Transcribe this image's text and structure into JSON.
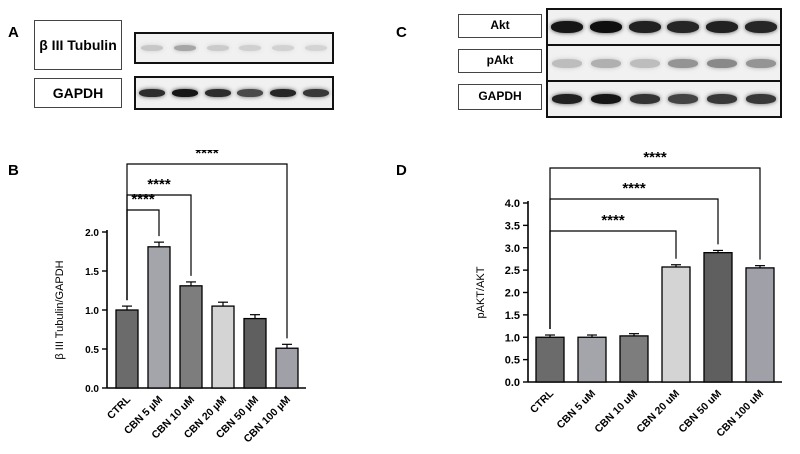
{
  "panels": {
    "a": "A",
    "b": "B",
    "c": "C",
    "d": "D"
  },
  "blots": {
    "a_top_label": "β III Tubulin",
    "a_bottom_label": "GAPDH",
    "c_labels": [
      "Akt",
      "pAkt",
      "GAPDH"
    ],
    "band_intensity": {
      "a_tubulin": [
        0.18,
        0.32,
        0.16,
        0.14,
        0.13,
        0.12
      ],
      "a_gapdh": [
        0.85,
        0.95,
        0.85,
        0.72,
        0.88,
        0.8
      ],
      "c_akt": [
        0.95,
        0.98,
        0.9,
        0.88,
        0.9,
        0.88
      ],
      "c_pakt": [
        0.22,
        0.28,
        0.22,
        0.4,
        0.45,
        0.4
      ],
      "c_gapdh": [
        0.9,
        0.95,
        0.82,
        0.75,
        0.8,
        0.8
      ]
    }
  },
  "chart_data": [
    {
      "type": "bar",
      "panel": "B",
      "categories": [
        "CTRL",
        "CBN 5 µM",
        "CBN 10 uM",
        "CBN 20 µM",
        "CBN 50 µM",
        "CBN 100 µM"
      ],
      "values": [
        1.0,
        1.81,
        1.31,
        1.05,
        0.89,
        0.51
      ],
      "errors": [
        0.05,
        0.06,
        0.05,
        0.05,
        0.05,
        0.05
      ],
      "colors": [
        "#6b6b6b",
        "#a4a4ab",
        "#7d7d7d",
        "#d4d4d4",
        "#5f5f5f",
        "#a0a0a8"
      ],
      "ylabel": "β III Tubulin/GAPDH",
      "xlabel": "",
      "ylim": [
        0,
        2.0
      ],
      "yticks": [
        "0.0",
        "0.5",
        "1.0",
        "1.5",
        "2.0"
      ],
      "significance": [
        {
          "from": 0,
          "to": 1,
          "label": "****"
        },
        {
          "from": 0,
          "to": 2,
          "label": "****"
        },
        {
          "from": 0,
          "to": 5,
          "label": "****"
        }
      ]
    },
    {
      "type": "bar",
      "panel": "D",
      "categories": [
        "CTRL",
        "CBN 5 uM",
        "CBN 10 uM",
        "CBN 20 uM",
        "CBN 50 uM",
        "CBN 100 uM"
      ],
      "values": [
        1.0,
        1.0,
        1.03,
        2.57,
        2.89,
        2.55
      ],
      "errors": [
        0.05,
        0.05,
        0.05,
        0.05,
        0.05,
        0.05
      ],
      "colors": [
        "#6b6b6b",
        "#a4a4ab",
        "#7d7d7d",
        "#d4d4d4",
        "#5f5f5f",
        "#a0a0a8"
      ],
      "ylabel": "pAKT/AKT",
      "xlabel": "",
      "ylim": [
        0,
        4.0
      ],
      "yticks": [
        "0.0",
        "0.5",
        "1.0",
        "1.5",
        "2.0",
        "2.5",
        "3.0",
        "3.5",
        "4.0"
      ],
      "significance": [
        {
          "from": 0,
          "to": 3,
          "label": "****"
        },
        {
          "from": 0,
          "to": 4,
          "label": "****"
        },
        {
          "from": 0,
          "to": 5,
          "label": "****"
        }
      ]
    }
  ]
}
